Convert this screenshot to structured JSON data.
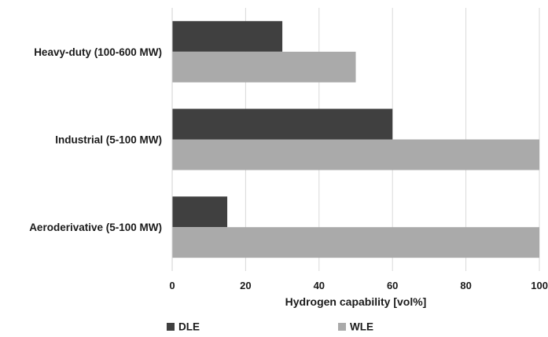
{
  "chart_data": {
    "type": "bar",
    "orientation": "horizontal",
    "categories": [
      "Heavy-duty (100-600 MW)",
      "Industrial (5-100 MW)",
      "Aeroderivative (5-100 MW)"
    ],
    "series": [
      {
        "name": "DLE",
        "values": [
          30,
          60,
          15
        ],
        "color": "#404040"
      },
      {
        "name": "WLE",
        "values": [
          50,
          100,
          100
        ],
        "color": "#aaaaaa"
      }
    ],
    "xlabel": "Hydrogen capability [vol%]",
    "xlim": [
      0,
      100
    ],
    "xticks": [
      0,
      20,
      40,
      60,
      80,
      100
    ],
    "grid": true,
    "legend_position": "bottom",
    "gridline_color": "#d9d9d9"
  }
}
